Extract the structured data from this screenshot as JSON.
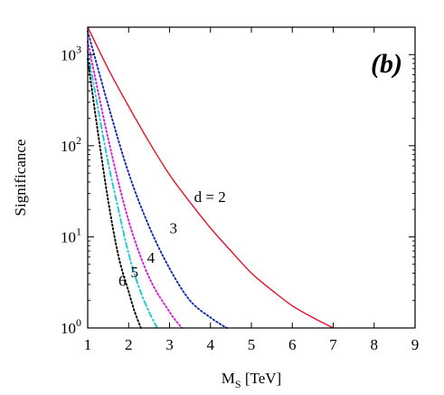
{
  "chart_data": {
    "type": "line",
    "panel_label": "(b)",
    "xlabel": "M",
    "xlabel_sub": "S",
    "xlabel_unit": " [TeV]",
    "ylabel": "Significance",
    "xlim": [
      1,
      9
    ],
    "ylim": [
      1,
      2000
    ],
    "yscale": "log",
    "x_ticks": [
      "1",
      "2",
      "3",
      "4",
      "5",
      "6",
      "7",
      "8",
      "9"
    ],
    "y_ticks": [
      {
        "value": 1,
        "base": "10",
        "exp": "0"
      },
      {
        "value": 10,
        "base": "10",
        "exp": "1"
      },
      {
        "value": 100,
        "base": "10",
        "exp": "2"
      },
      {
        "value": 1000,
        "base": "10",
        "exp": "3"
      }
    ],
    "grid": false,
    "series": [
      {
        "label": "d = 2",
        "color": "#e8102a",
        "dash": "solid",
        "x": [
          1.0,
          1.5,
          2.0,
          2.5,
          3.0,
          3.5,
          4.0,
          4.5,
          5.0,
          5.5,
          6.0,
          6.5,
          7.0
        ],
        "y": [
          2000,
          700,
          270,
          110,
          48,
          24,
          12.5,
          7.0,
          4.0,
          2.6,
          1.75,
          1.3,
          1.0
        ]
      },
      {
        "label": "3",
        "color": "#1428b4",
        "dash": "dotted",
        "x": [
          1.0,
          1.5,
          2.0,
          2.5,
          3.0,
          3.5,
          4.0,
          4.4
        ],
        "y": [
          1800,
          280,
          50,
          13,
          4.5,
          2.0,
          1.3,
          1.0
        ]
      },
      {
        "label": "4",
        "color": "#d21edc",
        "dash": "dotted",
        "x": [
          1.0,
          1.5,
          2.0,
          2.5,
          3.0,
          3.3
        ],
        "y": [
          1400,
          120,
          15,
          3.6,
          1.5,
          1.0
        ]
      },
      {
        "label": "5",
        "color": "#1ec8d2",
        "dash": "dashdot",
        "x": [
          1.0,
          1.25,
          1.5,
          1.75,
          2.0,
          2.25,
          2.5,
          2.7
        ],
        "y": [
          1100,
          260,
          65,
          20,
          6.5,
          2.8,
          1.5,
          1.0
        ]
      },
      {
        "label": "6",
        "color": "#000000",
        "dash": "dotted",
        "x": [
          1.0,
          1.25,
          1.5,
          1.75,
          2.0,
          2.15,
          2.3
        ],
        "y": [
          900,
          140,
          25,
          6.2,
          2.5,
          1.5,
          1.0
        ]
      }
    ],
    "curve_labels": [
      {
        "text": "d = 2",
        "x": 3.6,
        "y": 24
      },
      {
        "text": "3",
        "x": 3.0,
        "y": 11
      },
      {
        "text": "4",
        "x": 2.45,
        "y": 5.2
      },
      {
        "text": "5",
        "x": 2.05,
        "y": 3.6
      },
      {
        "text": "6",
        "x": 1.75,
        "y": 2.9
      }
    ]
  }
}
